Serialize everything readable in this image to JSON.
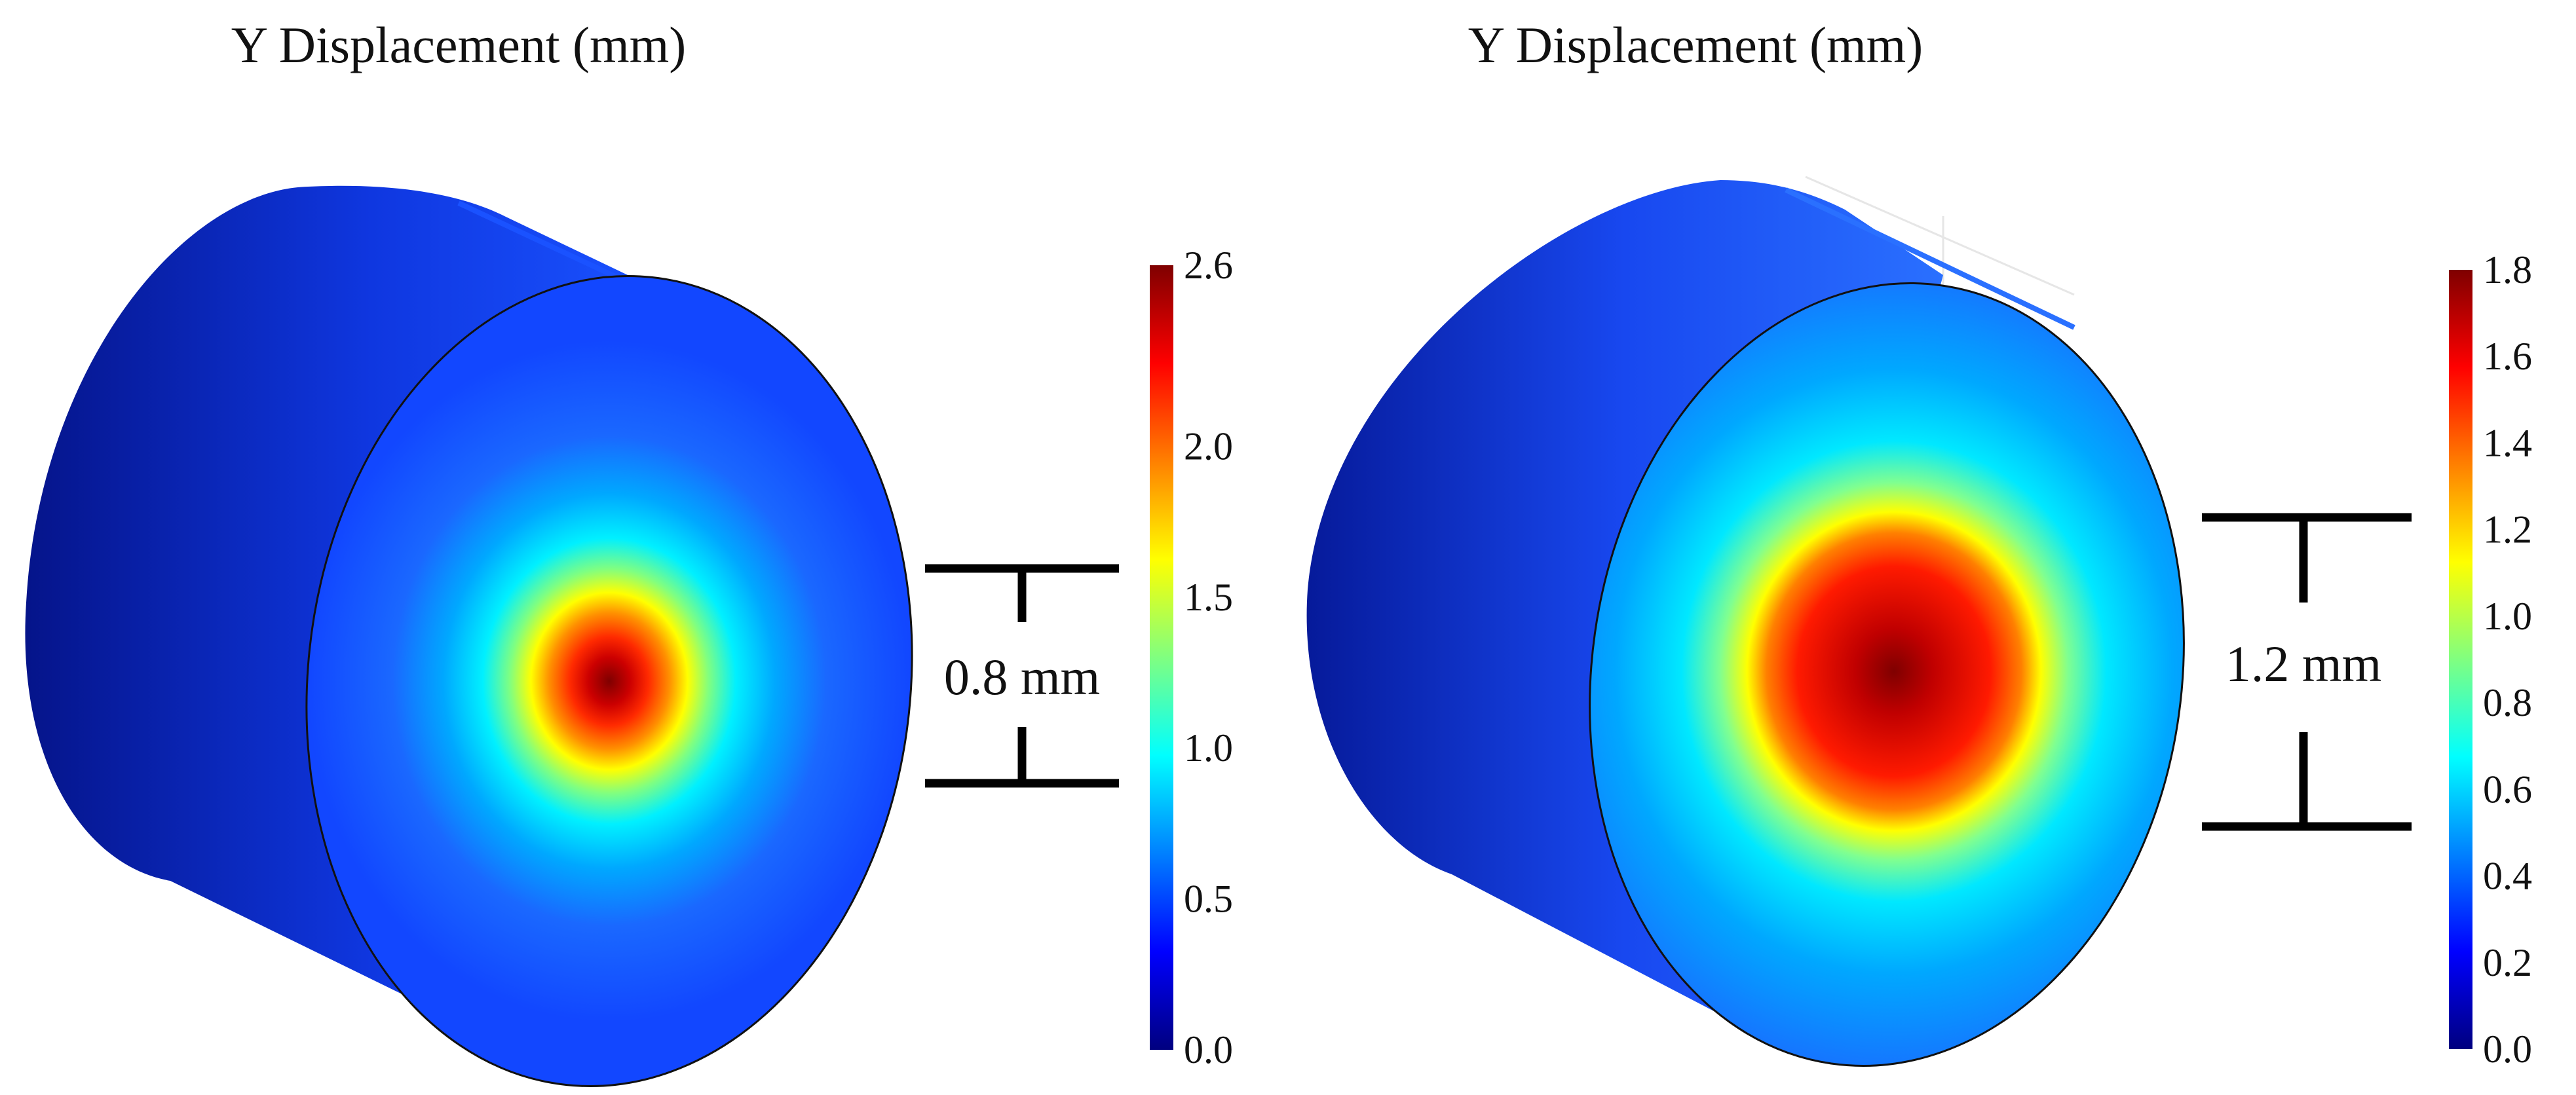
{
  "panels": [
    {
      "title": "Y Displacement (mm)",
      "colorbar": {
        "ticks": [
          "0.0",
          "0.5",
          "1.0",
          "1.5",
          "2.0",
          "2.6"
        ],
        "tick_values": [
          0.0,
          0.5,
          1.0,
          1.5,
          2.0,
          2.6
        ],
        "min": 0.0,
        "max": 2.6
      },
      "measurement": "0.8 mm",
      "hotspot_scale": 1.0
    },
    {
      "title": "Y Displacement (mm)",
      "colorbar": {
        "ticks": [
          "0.0",
          "0.2",
          "0.4",
          "0.6",
          "0.8",
          "1.0",
          "1.2",
          "1.4",
          "1.6",
          "1.8"
        ],
        "tick_values": [
          0.0,
          0.2,
          0.4,
          0.6,
          0.8,
          1.0,
          1.2,
          1.4,
          1.6,
          1.8
        ],
        "min": 0.0,
        "max": 1.8
      },
      "measurement": "1.2 mm",
      "hotspot_scale": 1.55
    }
  ],
  "colors": {
    "jet": [
      "#00007f",
      "#0000ff",
      "#0080ff",
      "#00ffff",
      "#80ff80",
      "#ffff00",
      "#ff8000",
      "#ff0000",
      "#7f0000"
    ],
    "cylinder_side_dark": "#0a1fa8",
    "cylinder_side_light": "#1a52ff",
    "face_base": "#1247ff",
    "outline": "#111111"
  }
}
